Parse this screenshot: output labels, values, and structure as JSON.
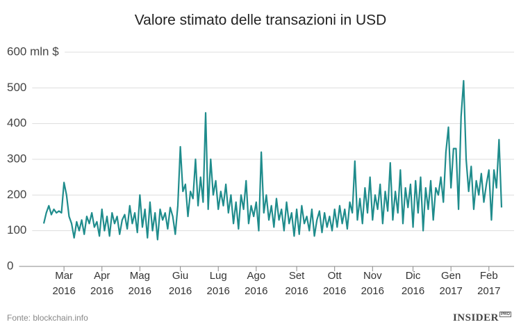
{
  "chart_data": {
    "type": "line",
    "title": "Valore stimato delle transazioni in USD",
    "source": "Fonte: blockchain.info",
    "logo": {
      "name": "INSIDER",
      "badge": "PRO"
    },
    "color": "#1f8c8c",
    "grid": true,
    "ylim": [
      0,
      600
    ],
    "yticks": [
      0,
      100,
      200,
      300,
      400,
      500,
      {
        "value": 600,
        "label": "600 mln $"
      }
    ],
    "categories": [
      null,
      null,
      null,
      null,
      null,
      null,
      null,
      null,
      "Mar 2016",
      null,
      null,
      null,
      null,
      null,
      null,
      null,
      null,
      null,
      null,
      null,
      null,
      null,
      null,
      "Apr 2016",
      null,
      null,
      null,
      null,
      null,
      null,
      null,
      null,
      null,
      null,
      null,
      null,
      null,
      null,
      "Mag 2016",
      null,
      null,
      null,
      null,
      null,
      null,
      null,
      null,
      null,
      null,
      null,
      null,
      null,
      null,
      null,
      "Giu 2016",
      null,
      null,
      null,
      null,
      null,
      null,
      null,
      null,
      null,
      null,
      null,
      null,
      null,
      null,
      "Lug 2016",
      null,
      null,
      null,
      null,
      null,
      null,
      null,
      null,
      null,
      null,
      null,
      null,
      null,
      null,
      "Ago 2016",
      null,
      null,
      null,
      null,
      null,
      null,
      null,
      null,
      null,
      null,
      null,
      null,
      null,
      null,
      null,
      "Set 2016",
      null,
      null,
      null,
      null,
      null,
      null,
      null,
      null,
      null,
      null,
      null,
      null,
      null,
      null,
      "Ott 2016",
      null,
      null,
      null,
      null,
      null,
      null,
      null,
      null,
      null,
      null,
      null,
      null,
      null,
      null,
      "Nov 2016",
      null,
      null,
      null,
      null,
      null,
      null,
      null,
      null,
      null,
      null,
      null,
      null,
      null,
      null,
      null,
      "Dic 2016",
      null,
      null,
      null,
      null,
      null,
      null,
      null,
      null,
      null,
      null,
      null,
      null,
      null,
      null,
      "Gen 2017",
      null,
      null,
      null,
      null,
      null,
      null,
      null,
      null,
      null,
      null,
      null,
      null,
      null,
      null,
      "Feb 2017",
      null,
      null,
      null,
      null,
      null
    ],
    "values": [
      120,
      150,
      170,
      145,
      160,
      150,
      155,
      150,
      235,
      200,
      140,
      120,
      80,
      125,
      100,
      130,
      90,
      140,
      120,
      150,
      110,
      125,
      85,
      160,
      100,
      140,
      85,
      150,
      120,
      140,
      90,
      130,
      145,
      105,
      170,
      120,
      150,
      95,
      200,
      110,
      160,
      80,
      180,
      100,
      150,
      75,
      160,
      130,
      150,
      105,
      165,
      140,
      90,
      170,
      335,
      210,
      230,
      140,
      210,
      190,
      300,
      170,
      250,
      180,
      430,
      160,
      300,
      200,
      240,
      160,
      210,
      170,
      230,
      150,
      200,
      120,
      180,
      105,
      200,
      160,
      240,
      120,
      170,
      140,
      180,
      100,
      320,
      150,
      200,
      130,
      170,
      110,
      190,
      130,
      160,
      100,
      180,
      120,
      150,
      85,
      160,
      90,
      170,
      120,
      140,
      100,
      160,
      85,
      130,
      155,
      95,
      150,
      110,
      140,
      100,
      160,
      110,
      170,
      120,
      160,
      105,
      180,
      150,
      295,
      130,
      190,
      120,
      220,
      150,
      250,
      130,
      200,
      160,
      230,
      120,
      210,
      155,
      290,
      130,
      210,
      150,
      270,
      120,
      220,
      165,
      230,
      110,
      240,
      150,
      250,
      100,
      220,
      160,
      240,
      130,
      220,
      200,
      250,
      180,
      320,
      390,
      220,
      330,
      330,
      160,
      420,
      520,
      300,
      210,
      280,
      160,
      240,
      200,
      260,
      180,
      230,
      270,
      130,
      270,
      220,
      355,
      165
    ]
  }
}
